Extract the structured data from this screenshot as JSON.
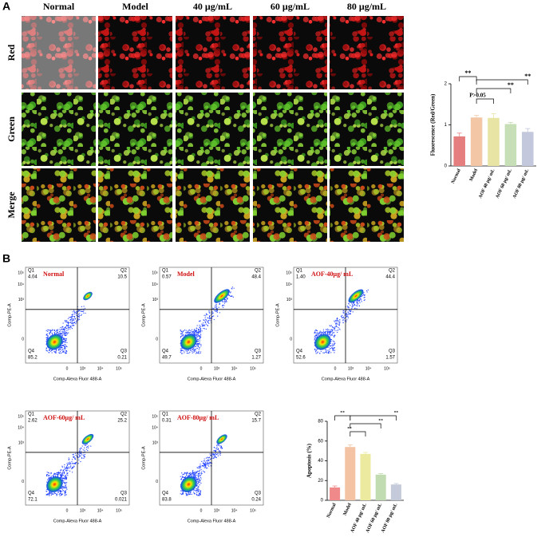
{
  "panel_a": {
    "label": "A",
    "columns": [
      "Normal",
      "Model",
      "40 μg/mL",
      "60 μg/mL",
      "80 μg/mL"
    ],
    "rows": [
      "Red",
      "Green",
      "Merge"
    ]
  },
  "panel_b": {
    "label": "B",
    "x_label": "Comp-Alexa Fluor 488-A",
    "y_label": "Comp-PE-A",
    "x_ticks": [
      "0",
      "10³",
      "10⁴",
      "10⁵"
    ],
    "y_ticks": [
      "10⁵",
      "10⁴",
      "10³",
      "0"
    ],
    "plots": [
      {
        "title": "Normal",
        "quadrants": [
          {
            "name": "Q1",
            "value": "4.04"
          },
          {
            "name": "Q2",
            "value": "10.5"
          },
          {
            "name": "Q3",
            "value": "0.21"
          },
          {
            "name": "Q4",
            "value": "85.2"
          }
        ]
      },
      {
        "title": "Model",
        "quadrants": [
          {
            "name": "Q1",
            "value": "0.57"
          },
          {
            "name": "Q2",
            "value": "48.4"
          },
          {
            "name": "Q3",
            "value": "1.27"
          },
          {
            "name": "Q4",
            "value": "49.7"
          }
        ]
      },
      {
        "title": "AOF-40μg/ mL",
        "quadrants": [
          {
            "name": "Q1",
            "value": "1.40"
          },
          {
            "name": "Q2",
            "value": "44.4"
          },
          {
            "name": "Q3",
            "value": "1.57"
          },
          {
            "name": "Q4",
            "value": "52.6"
          }
        ]
      },
      {
        "title": "AOF-60μg/ mL",
        "quadrants": [
          {
            "name": "Q1",
            "value": "2.62"
          },
          {
            "name": "Q2",
            "value": "25.2"
          },
          {
            "name": "Q3",
            "value": "0.021"
          },
          {
            "name": "Q4",
            "value": "72.1"
          }
        ]
      },
      {
        "title": "AOF-80μg/ mL",
        "quadrants": [
          {
            "name": "Q1",
            "value": "0.31"
          },
          {
            "name": "Q2",
            "value": "15.7"
          },
          {
            "name": "Q3",
            "value": "0.24"
          },
          {
            "name": "Q4",
            "value": "83.8"
          }
        ]
      }
    ]
  },
  "chart_data": [
    {
      "type": "bar",
      "y_label": "Fluorescence (Red/Green)",
      "categories": [
        "Normal",
        "Model",
        "AOF 40 μg/ mL",
        "AOF 60 μg/ mL",
        "AOF 80 μg/ mL"
      ],
      "values": [
        0.72,
        1.18,
        1.17,
        1.02,
        0.83
      ],
      "errors": [
        0.08,
        0.05,
        0.1,
        0.04,
        0.08
      ],
      "colors": [
        "#e57f7f",
        "#f3c7a6",
        "#e7e4a4",
        "#c7dfb6",
        "#c3c8dc"
      ],
      "ylim": [
        0,
        2
      ],
      "yticks": [
        0,
        1,
        2
      ],
      "annotations": [
        "**",
        "**",
        "**",
        "P>0.05"
      ]
    },
    {
      "type": "bar",
      "y_label": "Apoptosis (%)",
      "categories": [
        "Normal",
        "Model",
        "AOF 40 μg/ mL",
        "AOF 60 μg/ mL",
        "AOF 80 μg/ mL"
      ],
      "values": [
        13,
        54,
        47,
        26,
        16
      ],
      "errors": [
        1.5,
        2,
        1.5,
        1,
        1
      ],
      "colors": [
        "#f08a8a",
        "#f3c3a3",
        "#ecea9e",
        "#c2dcb2",
        "#c4cada"
      ],
      "ylim": [
        0,
        80
      ],
      "yticks": [
        0,
        20,
        40,
        60,
        80
      ],
      "annotations": [
        "**",
        "**",
        "**",
        "**"
      ]
    }
  ]
}
